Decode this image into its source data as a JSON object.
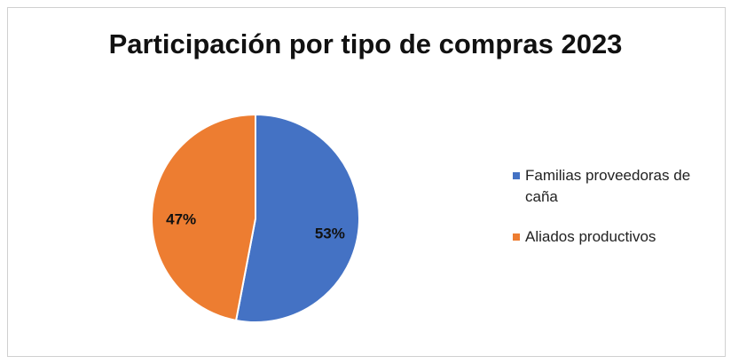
{
  "chart_data": {
    "type": "pie",
    "title": "Participación por tipo de compras 2023",
    "categories": [
      "Familias proveedoras de caña",
      "Aliados productivos"
    ],
    "values": [
      53,
      47
    ],
    "value_labels": [
      "53%",
      "47%"
    ],
    "colors": [
      "#4472c4",
      "#ed7d31"
    ],
    "legend": "right"
  }
}
